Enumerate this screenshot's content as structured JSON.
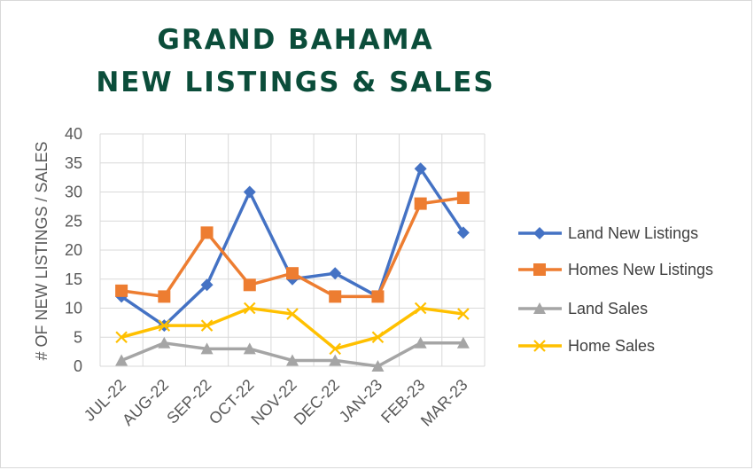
{
  "chart_data": {
    "type": "line",
    "title_lines": [
      "GRAND BAHAMA",
      "NEW LISTINGS & SALES"
    ],
    "xlabel": "",
    "ylabel": "# OF NEW LISTINGS / SALES",
    "categories": [
      "JUL-22",
      "AUG-22",
      "SEP-22",
      "OCT-22",
      "NOV-22",
      "DEC-22",
      "JAN-23",
      "FEB-23",
      "MAR-23"
    ],
    "ylim": [
      0,
      40
    ],
    "yticks": [
      0,
      5,
      10,
      15,
      20,
      25,
      30,
      35,
      40
    ],
    "grid": true,
    "legend_position": "right",
    "series": [
      {
        "name": "Land New Listings",
        "values": [
          12,
          7,
          14,
          30,
          15,
          16,
          12,
          34,
          23
        ],
        "color": "#4472c4",
        "marker": "diamond"
      },
      {
        "name": "Homes New Listings",
        "values": [
          13,
          12,
          23,
          14,
          16,
          12,
          12,
          28,
          29
        ],
        "color": "#ed7d31",
        "marker": "square"
      },
      {
        "name": "Land Sales",
        "values": [
          1,
          4,
          3,
          3,
          1,
          1,
          0,
          4,
          4
        ],
        "color": "#a5a5a5",
        "marker": "triangle"
      },
      {
        "name": "Home Sales",
        "values": [
          5,
          7,
          7,
          10,
          9,
          3,
          5,
          10,
          9
        ],
        "color": "#ffc000",
        "marker": "x"
      }
    ]
  }
}
